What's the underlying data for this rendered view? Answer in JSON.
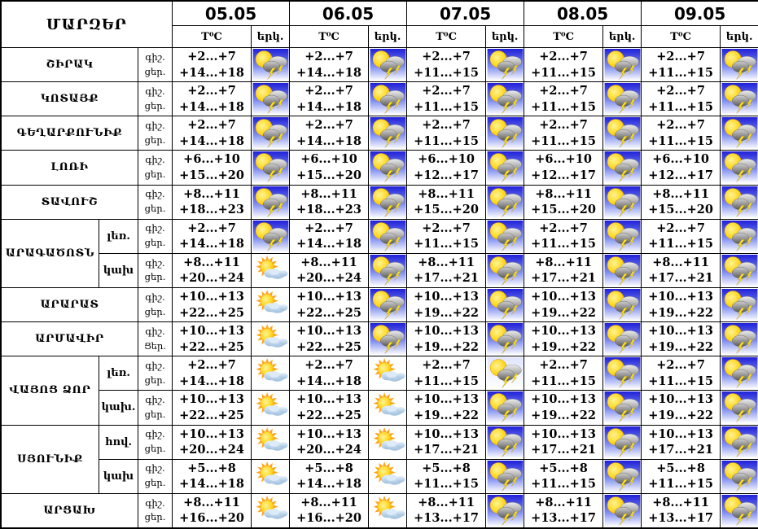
{
  "table": {
    "title": "ՄԱՐԶԵՐ",
    "dates": [
      "05.05",
      "06.05",
      "07.05",
      "08.05",
      "09.05"
    ],
    "temp_header": "T⁰C",
    "sky_header": "երկ.",
    "night_label": "գիշ.",
    "day_label": "ցեր.",
    "regions": [
      {
        "name": "ՇԻՐԱԿ",
        "rows": [
          {
            "sub": "",
            "cells": [
              {
                "night": "+2...+7",
                "day": "+14...+18",
                "sky": "storm"
              },
              {
                "night": "+2...+7",
                "day": "+14...+18",
                "sky": "storm"
              },
              {
                "night": "+2...+7",
                "day": "+11...+15",
                "sky": "storm"
              },
              {
                "night": "+2...+7",
                "day": "+11...+15",
                "sky": "storm"
              },
              {
                "night": "+2...+7",
                "day": "+11...+15",
                "sky": "storm"
              }
            ]
          }
        ]
      },
      {
        "name": "ԿՈՏԱՅՔ",
        "rows": [
          {
            "sub": "",
            "cells": [
              {
                "night": "+2...+7",
                "day": "+14...+18",
                "sky": "storm"
              },
              {
                "night": "+2...+7",
                "day": "+14...+18",
                "sky": "storm"
              },
              {
                "night": "+2...+7",
                "day": "+11...+15",
                "sky": "storm"
              },
              {
                "night": "+2...+7",
                "day": "+11...+15",
                "sky": "storm"
              },
              {
                "night": "+2...+7",
                "day": "+11...+15",
                "sky": "storm"
              }
            ]
          }
        ]
      },
      {
        "name": "ԳԵՂԱՐՔՈՒՆԻՔ",
        "rows": [
          {
            "sub": "",
            "cells": [
              {
                "night": "+2...+7",
                "day": "+14...+18",
                "sky": "storm"
              },
              {
                "night": "+2...+7",
                "day": "+14...+18",
                "sky": "storm"
              },
              {
                "night": "+2...+7",
                "day": "+11...+15",
                "sky": "storm"
              },
              {
                "night": "+2...+7",
                "day": "+11...+15",
                "sky": "storm"
              },
              {
                "night": "+2...+7",
                "day": "+11...+15",
                "sky": "storm"
              }
            ]
          }
        ]
      },
      {
        "name": "ԼՈՌԻ",
        "rows": [
          {
            "sub": "",
            "cells": [
              {
                "night": "+6...+10",
                "day": "+15...+20",
                "sky": "storm"
              },
              {
                "night": "+6...+10",
                "day": "+15...+20",
                "sky": "storm"
              },
              {
                "night": "+6...+10",
                "day": "+12...+17",
                "sky": "storm"
              },
              {
                "night": "+6...+10",
                "day": "+12...+17",
                "sky": "storm"
              },
              {
                "night": "+6...+10",
                "day": "+12...+17",
                "sky": "storm"
              }
            ]
          }
        ]
      },
      {
        "name": "ՏԱՎՈՒՇ",
        "rows": [
          {
            "sub": "",
            "cells": [
              {
                "night": "+8...+11",
                "day": "+18...+23",
                "sky": "storm"
              },
              {
                "night": "+8...+11",
                "day": "+18...+23",
                "sky": "storm"
              },
              {
                "night": "+8...+11",
                "day": "+15...+20",
                "sky": "storm"
              },
              {
                "night": "+8...+11",
                "day": "+15...+20",
                "sky": "storm"
              },
              {
                "night": "+8...+11",
                "day": "+15...+20",
                "sky": "storm"
              }
            ]
          }
        ]
      },
      {
        "name": "ԱՐԱԳԱԾՈՏՆ",
        "rows": [
          {
            "sub": "լեռ.",
            "cells": [
              {
                "night": "+2...+7",
                "day": "+14...+18",
                "sky": "storm"
              },
              {
                "night": "+2...+7",
                "day": "+14...+18",
                "sky": "storm"
              },
              {
                "night": "+2...+7",
                "day": "+11...+15",
                "sky": "storm"
              },
              {
                "night": "+2...+7",
                "day": "+11...+15",
                "sky": "storm"
              },
              {
                "night": "+2...+7",
                "day": "+11...+15",
                "sky": "storm"
              }
            ]
          },
          {
            "sub": "կախ",
            "cells": [
              {
                "night": "+8...+11",
                "day": "+20...+24",
                "sky": "partly"
              },
              {
                "night": "+8...+11",
                "day": "+20...+24",
                "sky": "storm"
              },
              {
                "night": "+8...+11",
                "day": "+17...+21",
                "sky": "storm"
              },
              {
                "night": "+8...+11",
                "day": "+17...+21",
                "sky": "storm"
              },
              {
                "night": "+8...+11",
                "day": "+17...+21",
                "sky": "storm"
              }
            ]
          }
        ]
      },
      {
        "name": "ԱՐԱՐԱՏ",
        "rows": [
          {
            "sub": "",
            "cells": [
              {
                "night": "+10...+13",
                "day": "+22...+25",
                "sky": "partly"
              },
              {
                "night": "+10...+13",
                "day": "+22...+25",
                "sky": "storm"
              },
              {
                "night": "+10...+13",
                "day": "+19...+22",
                "sky": "storm"
              },
              {
                "night": "+10...+13",
                "day": "+19...+22",
                "sky": "storm"
              },
              {
                "night": "+10...+13",
                "day": "+19...+22",
                "sky": "storm"
              }
            ]
          }
        ]
      },
      {
        "name": "ԱՐՄԱՎԻՐ",
        "rows": [
          {
            "sub": "",
            "day_label": "Ցեր.",
            "cells": [
              {
                "night": "+10...+13",
                "day": "+22...+25",
                "sky": "partly"
              },
              {
                "night": "+10...+13",
                "day": "+22...+25",
                "sky": "storm"
              },
              {
                "night": "+10...+13",
                "day": "+19...+22",
                "sky": "storm"
              },
              {
                "night": "+10...+13",
                "day": "+19...+22",
                "sky": "storm"
              },
              {
                "night": "+10...+13",
                "day": "+19...+22",
                "sky": "storm"
              }
            ]
          }
        ]
      },
      {
        "name": "ՎԱՅՈՑ ՁՈՐ",
        "rows": [
          {
            "sub": "լեռ.",
            "cells": [
              {
                "night": "+2...+7",
                "day": "+14...+18",
                "sky": "partly"
              },
              {
                "night": "+2...+7",
                "day": "+14...+18",
                "sky": "partly"
              },
              {
                "night": "+2...+7",
                "day": "+11...+15",
                "sky": "storm-light"
              },
              {
                "night": "+2...+7",
                "day": "+11...+15",
                "sky": "storm"
              },
              {
                "night": "+2...+7",
                "day": "+11...+15",
                "sky": "storm"
              }
            ]
          },
          {
            "sub": "կախ.",
            "cells": [
              {
                "night": "+10...+13",
                "day": "+22...+25",
                "sky": "partly"
              },
              {
                "night": "+10...+13",
                "day": "+22...+25",
                "sky": "partly"
              },
              {
                "night": "+10...+13",
                "day": "+19...+22",
                "sky": "storm"
              },
              {
                "night": "+10...+13",
                "day": "+19...+22",
                "sky": "storm"
              },
              {
                "night": "+10...+13",
                "day": "+19...+22",
                "sky": "storm"
              }
            ]
          }
        ]
      },
      {
        "name": "ՍՅՈՒՆԻՔ",
        "rows": [
          {
            "sub": "հով.",
            "cells": [
              {
                "night": "+10...+13",
                "day": "+20...+24",
                "sky": "partly"
              },
              {
                "night": "+10...+13",
                "day": "+20...+24",
                "sky": "partly"
              },
              {
                "night": "+10...+13",
                "day": "+17...+21",
                "sky": "storm"
              },
              {
                "night": "+10...+13",
                "day": "+17...+21",
                "sky": "storm"
              },
              {
                "night": "+10...+13",
                "day": "+17...+21",
                "sky": "storm"
              }
            ]
          },
          {
            "sub": "կախ",
            "cells": [
              {
                "night": "+5...+8",
                "day": "+14...+18",
                "sky": "partly"
              },
              {
                "night": "+5...+8",
                "day": "+14...+18",
                "sky": "partly"
              },
              {
                "night": "+5...+8",
                "day": "+11...+15",
                "sky": "storm"
              },
              {
                "night": "+5...+8",
                "day": "+11...+15",
                "sky": "storm"
              },
              {
                "night": "+5...+8",
                "day": "+11...+15",
                "sky": "storm"
              }
            ]
          }
        ]
      },
      {
        "name": "ԱՐՑԱԽ",
        "rows": [
          {
            "sub": "",
            "cells": [
              {
                "night": "+8...+11",
                "day": "+16...+20",
                "sky": "partly"
              },
              {
                "night": "+8...+11",
                "day": "+16...+20",
                "sky": "partly"
              },
              {
                "night": "+8...+11",
                "day": "+13...+17",
                "sky": "storm"
              },
              {
                "night": "+8...+11",
                "day": "+13...+17",
                "sky": "storm"
              },
              {
                "night": "+8...+11",
                "day": "+13...+17",
                "sky": "storm"
              }
            ]
          }
        ]
      }
    ]
  },
  "icons": {
    "storm": "sun-cloud-lightning-icon",
    "storm-light": "sun-cloud-lightning-light-icon",
    "partly": "sun-cloud-icon"
  },
  "colors": {
    "border": "#000000",
    "background": "#ffffff",
    "icon_sky_blue": "#2020d8",
    "sun_yellow": "#ffd81e",
    "cloud_gray": "#8f8f8f",
    "lightning_yellow": "#ffe818",
    "cloud_blue": "#9dbedd"
  }
}
